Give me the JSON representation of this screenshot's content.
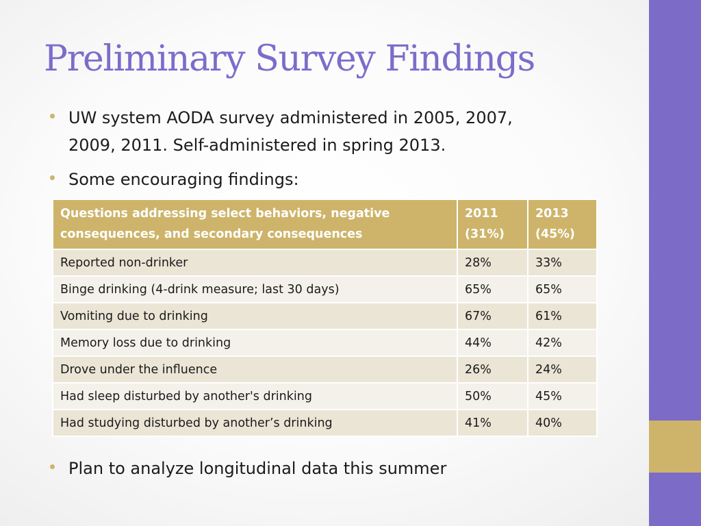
{
  "slide": {
    "title": "Preliminary Survey Findings",
    "bullets": [
      "UW system AODA survey administered in 2005, 2007,",
      "2009, 2011. Self-administered in spring 2013.",
      "Some encouraging findings:",
      "Plan to analyze longitudinal data this summer"
    ]
  },
  "table": {
    "headers": {
      "question_line1": "Questions addressing select behaviors, negative",
      "question_line2": "consequences, and secondary consequences",
      "y2011_line1": "2011",
      "y2011_line2": "(31%)",
      "y2013_line1": "2013",
      "y2013_line2": "(45%)"
    },
    "rows": [
      {
        "question": "Reported non-drinker",
        "v2011": "28%",
        "v2013": "33%"
      },
      {
        "question": "Binge drinking (4-drink measure; last 30 days)",
        "v2011": "65%",
        "v2013": "65%"
      },
      {
        "question": "Vomiting due to drinking",
        "v2011": "67%",
        "v2013": "61%"
      },
      {
        "question": "Memory loss due to drinking",
        "v2011": "44%",
        "v2013": "42%"
      },
      {
        "question": "Drove under the influence",
        "v2011": "26%",
        "v2013": "24%"
      },
      {
        "question": "Had sleep disturbed by another's drinking",
        "v2011": "50%",
        "v2013": "45%"
      },
      {
        "question": "Had studying disturbed by another’s drinking",
        "v2011": "41%",
        "v2013": "40%"
      }
    ]
  },
  "colors": {
    "accent_purple": "#7c6cc8",
    "accent_gold": "#cdb46a",
    "row_dark": "#ebe5d6",
    "row_light": "#f4f1ea"
  }
}
